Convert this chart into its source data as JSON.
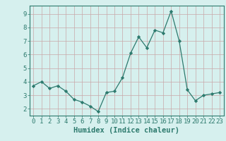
{
  "x": [
    0,
    1,
    2,
    3,
    4,
    5,
    6,
    7,
    8,
    9,
    10,
    11,
    12,
    13,
    14,
    15,
    16,
    17,
    18,
    19,
    20,
    21,
    22,
    23
  ],
  "y": [
    3.7,
    4.0,
    3.5,
    3.7,
    3.3,
    2.7,
    2.5,
    2.2,
    1.8,
    3.2,
    3.3,
    4.3,
    6.1,
    7.3,
    6.5,
    7.8,
    7.6,
    9.2,
    7.0,
    3.4,
    2.6,
    3.0,
    3.1,
    3.2
  ],
  "line_color": "#2d7a6e",
  "marker_color": "#2d7a6e",
  "bg_color": "#d6f0ee",
  "grid_color": "#c8a8a8",
  "xlabel": "Humidex (Indice chaleur)",
  "ylim": [
    1.5,
    9.6
  ],
  "xlim": [
    -0.5,
    23.5
  ],
  "yticks": [
    2,
    3,
    4,
    5,
    6,
    7,
    8,
    9
  ],
  "xticks": [
    0,
    1,
    2,
    3,
    4,
    5,
    6,
    7,
    8,
    9,
    10,
    11,
    12,
    13,
    14,
    15,
    16,
    17,
    18,
    19,
    20,
    21,
    22,
    23
  ],
  "tick_fontsize": 6.5,
  "xlabel_fontsize": 7.5,
  "spine_color": "#2d7a6e"
}
